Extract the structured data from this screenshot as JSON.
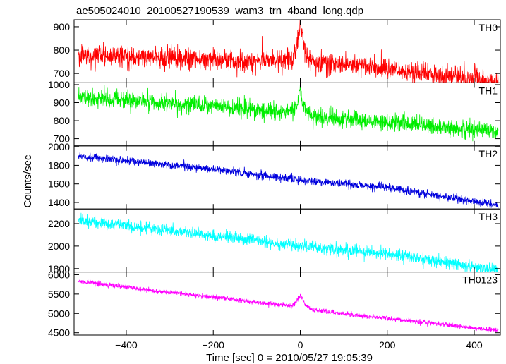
{
  "chart_data": {
    "type": "line",
    "title": "ae505024010_20100527190539_wam3_trn_4band_long.qdp",
    "xlabel": "Time [sec] 0 = 2010/05/27 19:05:39",
    "ylabel": "Counts/sec",
    "xlim": [
      -520,
      460
    ],
    "x_ticks": [
      -400,
      -200,
      0,
      200,
      400
    ],
    "x_tick_labels": [
      "−400",
      "−200",
      "0",
      "200",
      "400"
    ],
    "x_data_range": [
      -510,
      455
    ],
    "burst_time": 0,
    "grid": false,
    "legend": "none",
    "panels": [
      {
        "label": "TH0",
        "color": "#ff0000",
        "ylim": [
          660,
          930
        ],
        "y_ticks": [
          700,
          800,
          900
        ],
        "trend": [
          [
            -510,
            775
          ],
          [
            -100,
            755
          ],
          [
            -15,
            760
          ],
          [
            0,
            860
          ],
          [
            15,
            760
          ],
          [
            455,
            665
          ]
        ],
        "noise": 40,
        "burst": {
          "t": 0,
          "peak": 930,
          "width": 7
        }
      },
      {
        "label": "TH1",
        "color": "#00ee00",
        "ylim": [
          660,
          1010
        ],
        "y_ticks": [
          700,
          800,
          900,
          1000
        ],
        "trend": [
          [
            -510,
            930
          ],
          [
            -200,
            880
          ],
          [
            -30,
            850
          ],
          [
            0,
            880
          ],
          [
            30,
            820
          ],
          [
            455,
            740
          ]
        ],
        "noise": 42,
        "burst": {
          "t": 0,
          "peak": 990,
          "width": 5
        }
      },
      {
        "label": "TH2",
        "color": "#0000dd",
        "ylim": [
          1330,
          2010
        ],
        "y_ticks": [
          1400,
          1600,
          1800,
          2000
        ],
        "trend": [
          [
            -510,
            1900
          ],
          [
            -400,
            1850
          ],
          [
            -200,
            1760
          ],
          [
            0,
            1640
          ],
          [
            200,
            1560
          ],
          [
            455,
            1370
          ]
        ],
        "noise": 38,
        "burst": null
      },
      {
        "label": "TH3",
        "color": "#00ffff",
        "ylim": [
          1770,
          2330
        ],
        "y_ticks": [
          1800,
          2000,
          2200
        ],
        "trend": [
          [
            -510,
            2230
          ],
          [
            -300,
            2140
          ],
          [
            0,
            2000
          ],
          [
            200,
            1930
          ],
          [
            455,
            1790
          ]
        ],
        "noise": 50,
        "burst": null
      },
      {
        "label": "TH0123",
        "color": "#ff00ff",
        "ylim": [
          4440,
          6070
        ],
        "y_ticks": [
          4500,
          5000,
          5500,
          6000
        ],
        "trend": [
          [
            -510,
            5840
          ],
          [
            -300,
            5540
          ],
          [
            -20,
            5190
          ],
          [
            0,
            5320
          ],
          [
            30,
            5080
          ],
          [
            455,
            4560
          ]
        ],
        "noise": 55,
        "burst": {
          "t": 0,
          "peak": 5500,
          "width": 8
        }
      }
    ]
  }
}
